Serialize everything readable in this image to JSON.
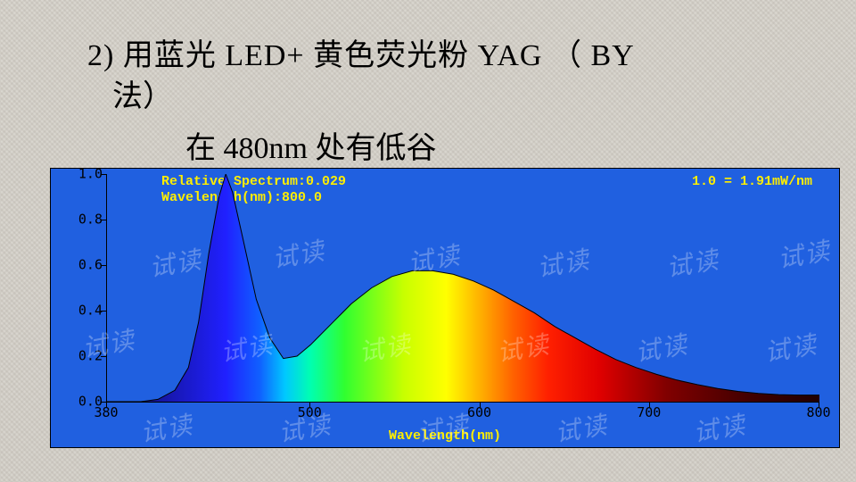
{
  "title_line1": "2) 用蓝光 LED+ 黄色荧光粉 YAG （ BY",
  "title_line2": "法）",
  "subtitle": "在 480nm 处有低谷",
  "chart": {
    "type": "area-spectrum",
    "legend1": "Relative Spectrum:0.029",
    "legend2": "Wavelength(nm):800.0",
    "legend3": "1.0 = 1.91mW/nm",
    "xlabel": "Wavelength(nm)",
    "background_color": "#2060e0",
    "label_color": "#ffee00",
    "axis_color": "#000000",
    "label_font": "Consolas",
    "label_fontsize": 15,
    "xlim": [
      380,
      800
    ],
    "ylim": [
      0,
      1.0
    ],
    "xticks": [
      380,
      500,
      600,
      700,
      800
    ],
    "yticks": [
      0.0,
      0.2,
      0.4,
      0.6,
      0.8,
      1.0
    ],
    "curve": [
      [
        380,
        0.0
      ],
      [
        400,
        0.0
      ],
      [
        410,
        0.01
      ],
      [
        420,
        0.05
      ],
      [
        428,
        0.15
      ],
      [
        434,
        0.35
      ],
      [
        440,
        0.65
      ],
      [
        446,
        0.9
      ],
      [
        450,
        1.0
      ],
      [
        454,
        0.92
      ],
      [
        460,
        0.72
      ],
      [
        468,
        0.45
      ],
      [
        476,
        0.28
      ],
      [
        484,
        0.19
      ],
      [
        492,
        0.2
      ],
      [
        500,
        0.25
      ],
      [
        512,
        0.34
      ],
      [
        524,
        0.43
      ],
      [
        536,
        0.5
      ],
      [
        548,
        0.55
      ],
      [
        560,
        0.575
      ],
      [
        572,
        0.575
      ],
      [
        584,
        0.56
      ],
      [
        596,
        0.53
      ],
      [
        608,
        0.49
      ],
      [
        620,
        0.44
      ],
      [
        632,
        0.39
      ],
      [
        644,
        0.33
      ],
      [
        656,
        0.28
      ],
      [
        668,
        0.23
      ],
      [
        680,
        0.185
      ],
      [
        692,
        0.15
      ],
      [
        704,
        0.12
      ],
      [
        716,
        0.095
      ],
      [
        728,
        0.075
      ],
      [
        740,
        0.058
      ],
      [
        752,
        0.045
      ],
      [
        764,
        0.036
      ],
      [
        776,
        0.031
      ],
      [
        788,
        0.029
      ],
      [
        800,
        0.029
      ]
    ],
    "fill_gradient": [
      [
        380,
        "#0a0a50"
      ],
      [
        420,
        "#1818b8"
      ],
      [
        450,
        "#2020ff"
      ],
      [
        470,
        "#1060ff"
      ],
      [
        485,
        "#00c8ff"
      ],
      [
        500,
        "#00ffb0"
      ],
      [
        520,
        "#30ff30"
      ],
      [
        555,
        "#c8ff00"
      ],
      [
        580,
        "#ffff00"
      ],
      [
        600,
        "#ffb000"
      ],
      [
        620,
        "#ff6000"
      ],
      [
        640,
        "#ff2000"
      ],
      [
        670,
        "#e00000"
      ],
      [
        710,
        "#800000"
      ],
      [
        760,
        "#400000"
      ],
      [
        800,
        "#200000"
      ]
    ],
    "watermark_text": "试读",
    "watermark_color_light": "rgba(255,255,255,0.28)",
    "watermark_color_dark": "rgba(120,120,120,0.22)"
  }
}
